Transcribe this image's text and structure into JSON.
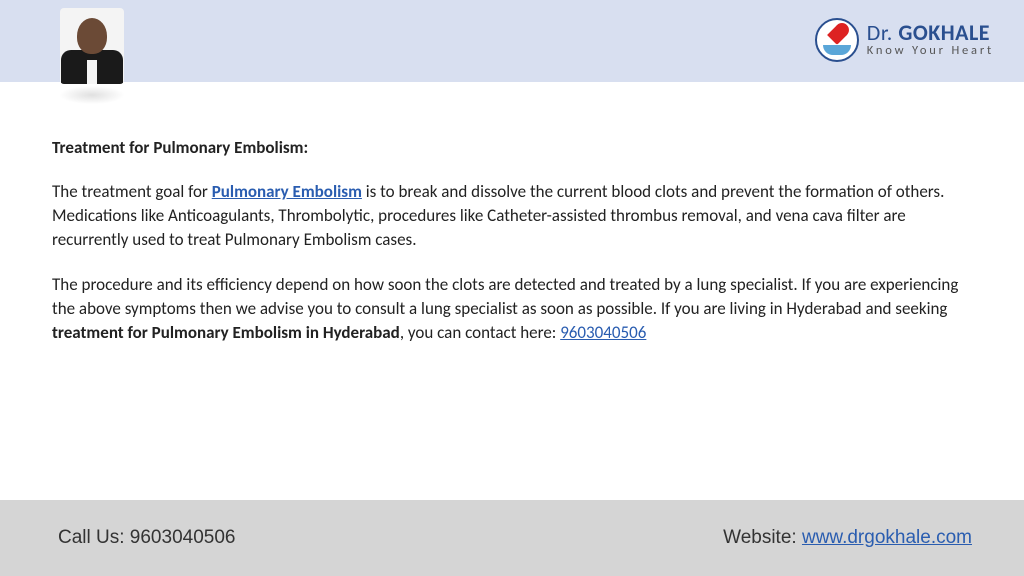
{
  "header": {
    "background_color": "#d8dff0",
    "logo": {
      "name_prefix": "Dr. ",
      "name_main": "GOKHALE",
      "tagline": "Know Your Heart",
      "brand_color": "#2a4f8f",
      "accent_color": "#d22",
      "hand_color": "#5aa6d8"
    }
  },
  "content": {
    "heading": "Treatment for Pulmonary Embolism:",
    "para1_pre": "The treatment goal for ",
    "para1_link": "Pulmonary Embolism",
    "para1_post": " is to break and dissolve the current blood clots and prevent the formation of others. Medications like Anticoagulants, Thrombolytic, procedures like Catheter-assisted thrombus removal, and vena cava filter are recurrently used to treat Pulmonary Embolism cases.",
    "para2_pre": "The procedure and its efficiency depend on how soon the clots are detected and treated by a lung specialist. If you are experiencing the above symptoms then we advise you to consult a lung specialist as soon as possible. If you are living in Hyderabad and seeking ",
    "para2_bold": "treatment for Pulmonary Embolism in Hyderabad",
    "para2_post1": ", you can contact here: ",
    "para2_phone": "9603040506",
    "link_color": "#2a5db0",
    "text_color": "#222222",
    "font_size": 17
  },
  "footer": {
    "background_color": "#d5d5d5",
    "call_label": "Call Us: ",
    "call_number": "9603040506",
    "website_label": "Website: ",
    "website_url": "www.drgokhale.com",
    "font_size": 19
  }
}
